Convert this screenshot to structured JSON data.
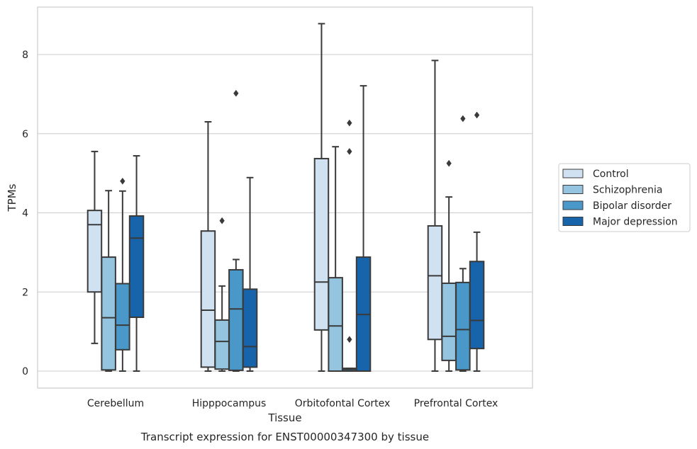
{
  "chart_data": {
    "type": "box",
    "title": "",
    "xlabel": "Tissue",
    "ylabel": "TPMs",
    "caption": "Transcript expression for ENST00000347300 by tissue",
    "categories": [
      "Cerebellum",
      "Hipppocampus",
      "Orbitofontal Cortex",
      "Prefrontal Cortex"
    ],
    "yticks": [
      0,
      2,
      4,
      6,
      8
    ],
    "ylim": [
      -0.42,
      9.25
    ],
    "grid": "horizontal",
    "legend_position": "right",
    "colors": {
      "Control": "#d0e1f2",
      "Schizophrenia": "#94c4df",
      "Bipolar disorder": "#4a98c9",
      "Major depression": "#1764ab",
      "box_edge": "#3a3a3a",
      "grid": "#cccccc",
      "frame": "#cccccc"
    },
    "series": [
      {
        "name": "Control",
        "boxes": [
          {
            "whislo": 0.7,
            "q1": 2.0,
            "med": 3.7,
            "q3": 4.06,
            "whishi": 5.55,
            "fliers": []
          },
          {
            "whislo": 0.0,
            "q1": 0.1,
            "med": 1.54,
            "q3": 3.54,
            "whishi": 6.3,
            "fliers": []
          },
          {
            "whislo": 0.0,
            "q1": 1.04,
            "med": 2.25,
            "q3": 5.37,
            "whishi": 8.78,
            "fliers": []
          },
          {
            "whislo": 0.0,
            "q1": 0.8,
            "med": 2.41,
            "q3": 3.67,
            "whishi": 7.85,
            "fliers": []
          }
        ]
      },
      {
        "name": "Schizophrenia",
        "boxes": [
          {
            "whislo": 0.0,
            "q1": 0.03,
            "med": 1.35,
            "q3": 2.88,
            "whishi": 4.56,
            "fliers": []
          },
          {
            "whislo": 0.0,
            "q1": 0.05,
            "med": 0.75,
            "q3": 1.29,
            "whishi": 2.15,
            "fliers": [
              3.8
            ]
          },
          {
            "whislo": 0.0,
            "q1": 0.0,
            "med": 1.14,
            "q3": 2.36,
            "whishi": 5.67,
            "fliers": []
          },
          {
            "whislo": 0.0,
            "q1": 0.27,
            "med": 0.88,
            "q3": 2.22,
            "whishi": 4.4,
            "fliers": [
              5.25
            ]
          }
        ]
      },
      {
        "name": "Bipolar disorder",
        "boxes": [
          {
            "whislo": 0.0,
            "q1": 0.54,
            "med": 1.16,
            "q3": 2.21,
            "whishi": 4.55,
            "fliers": [
              4.8
            ]
          },
          {
            "whislo": 0.0,
            "q1": 0.02,
            "med": 1.57,
            "q3": 2.56,
            "whishi": 2.82,
            "fliers": [
              7.02
            ]
          },
          {
            "whislo": 0.0,
            "q1": 0.0,
            "med": 0.04,
            "q3": 0.07,
            "whishi": 0.07,
            "fliers": [
              0.8,
              5.55,
              6.27
            ]
          },
          {
            "whislo": 0.0,
            "q1": 0.03,
            "med": 1.05,
            "q3": 2.24,
            "whishi": 2.59,
            "fliers": [
              6.38
            ]
          }
        ]
      },
      {
        "name": "Major depression",
        "boxes": [
          {
            "whislo": 0.0,
            "q1": 1.36,
            "med": 3.36,
            "q3": 3.92,
            "whishi": 5.44,
            "fliers": []
          },
          {
            "whislo": 0.0,
            "q1": 0.1,
            "med": 0.62,
            "q3": 2.07,
            "whishi": 4.89,
            "fliers": []
          },
          {
            "whislo": 0.0,
            "q1": 0.0,
            "med": 1.43,
            "q3": 2.88,
            "whishi": 7.21,
            "fliers": []
          },
          {
            "whislo": 0.0,
            "q1": 0.57,
            "med": 1.28,
            "q3": 2.77,
            "whishi": 3.51,
            "fliers": [
              6.47
            ]
          }
        ]
      }
    ]
  }
}
